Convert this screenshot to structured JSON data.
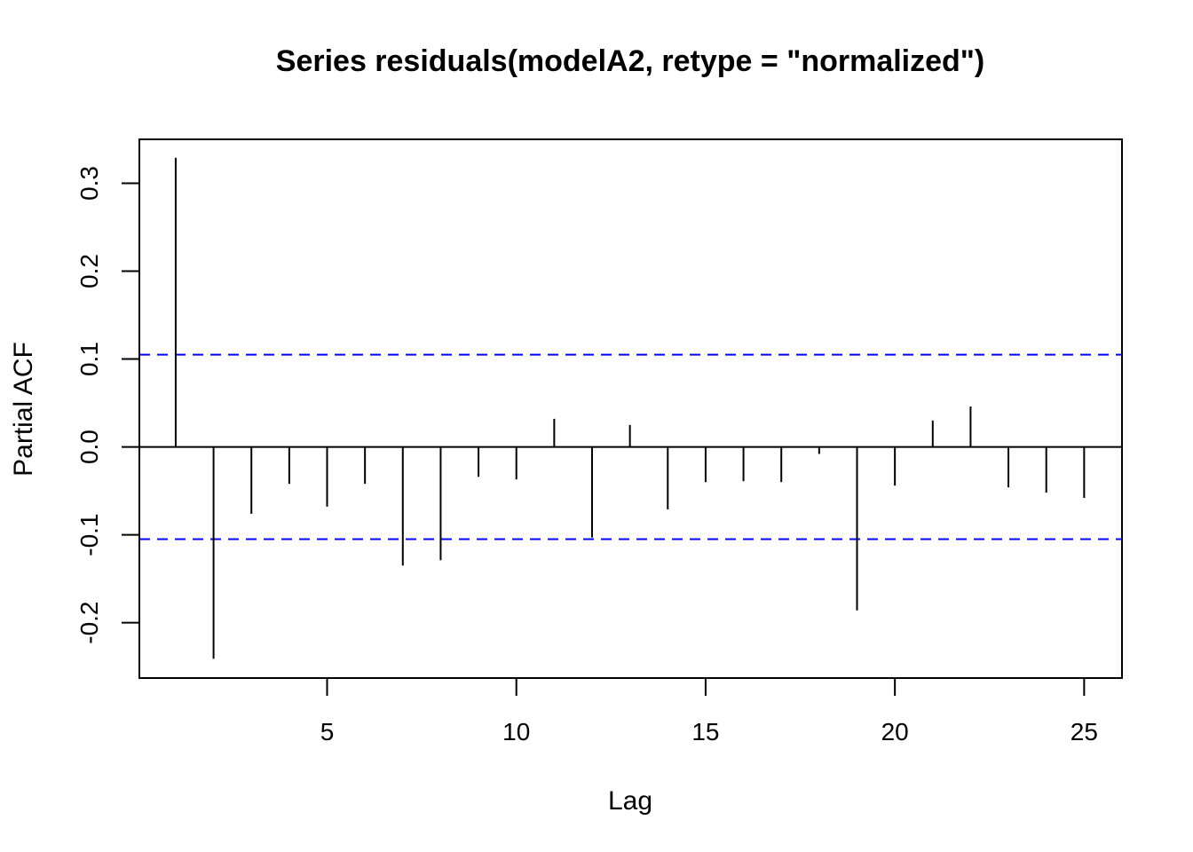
{
  "chart_data": {
    "type": "bar",
    "title": "Series  residuals(modelA2, retype = \"normalized\")",
    "xlabel": "Lag",
    "ylabel": "Partial ACF",
    "xlim": [
      0.04,
      26.0
    ],
    "ylim": [
      -0.263,
      0.35
    ],
    "xticks": [
      5,
      10,
      15,
      20,
      25
    ],
    "xtick_labels": [
      "5",
      "10",
      "15",
      "20",
      "25"
    ],
    "yticks": [
      -0.2,
      -0.1,
      0.0,
      0.1,
      0.2,
      0.3
    ],
    "ytick_labels": [
      "-0.2",
      "-0.1",
      "0.0",
      "0.1",
      "0.2",
      "0.3"
    ],
    "lags": [
      1,
      2,
      3,
      4,
      5,
      6,
      7,
      8,
      9,
      10,
      11,
      12,
      13,
      14,
      15,
      16,
      17,
      18,
      19,
      20,
      21,
      22,
      23,
      24,
      25
    ],
    "values": [
      0.329,
      -0.241,
      -0.076,
      -0.042,
      -0.068,
      -0.042,
      -0.135,
      -0.129,
      -0.034,
      -0.037,
      0.032,
      -0.103,
      0.025,
      -0.071,
      -0.04,
      -0.039,
      -0.04,
      -0.008,
      -0.186,
      -0.044,
      0.03,
      0.046,
      -0.046,
      -0.052,
      -0.058
    ],
    "confidence_bounds": [
      0.105,
      -0.105
    ],
    "colors": {
      "bars": "#000000",
      "confidence_line": "#0000ff",
      "frame": "#000000"
    }
  }
}
